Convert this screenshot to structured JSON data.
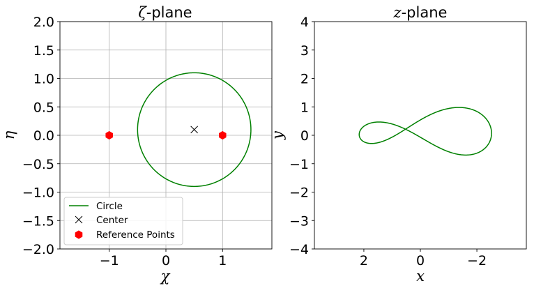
{
  "chart_data": [
    {
      "type": "line",
      "title_symbol": "ζ",
      "title_suffix": "-plane",
      "xlabel": "χ",
      "ylabel": "η",
      "xlim": [
        -1.87,
        1.87
      ],
      "ylim": [
        -2.0,
        2.0
      ],
      "xticks": [
        -1,
        0,
        1
      ],
      "xtick_labels": [
        "−1",
        "0",
        "1"
      ],
      "yticks": [
        2.0,
        1.5,
        1.0,
        0.5,
        0.0,
        -0.5,
        -1.0,
        -1.5,
        -2.0
      ],
      "ytick_labels": [
        "2.0",
        "1.5",
        "1.0",
        "0.5",
        "0.0",
        "−0.5",
        "−1.0",
        "−1.5",
        "−2.0"
      ],
      "grid": true,
      "legend_position": "lower-left",
      "series": [
        {
          "name": "Circle",
          "kind": "circle",
          "center": [
            0.5,
            0.1
          ],
          "radius": 1.0,
          "color": "#008000"
        },
        {
          "name": "Center",
          "kind": "marker-x",
          "points": [
            [
              0.5,
              0.1
            ]
          ],
          "color": "#000000"
        },
        {
          "name": "Reference Points",
          "kind": "marker-hexagon",
          "points": [
            [
              -1,
              0
            ],
            [
              1,
              0
            ]
          ],
          "color": "#ff0000"
        }
      ]
    },
    {
      "type": "line",
      "title_symbol": "z",
      "title_suffix": "-plane",
      "xlabel": "x",
      "ylabel": "y",
      "xlim": [
        3.75,
        -3.75
      ],
      "ylim": [
        -4,
        4
      ],
      "x_axis_inverted": true,
      "xticks": [
        2,
        0,
        -2
      ],
      "xtick_labels": [
        "2",
        "0",
        "−2"
      ],
      "yticks": [
        4,
        3,
        2,
        1,
        0,
        -1,
        -2,
        -3,
        -4
      ],
      "ytick_labels": [
        "4",
        "3",
        "2",
        "1",
        "0",
        "−1",
        "−2",
        "−3",
        "−4"
      ],
      "grid": false,
      "series": [
        {
          "kind": "joukowski-image",
          "center": [
            0.5,
            0.1
          ],
          "radius": 1.0,
          "color": "#008000"
        }
      ]
    }
  ]
}
